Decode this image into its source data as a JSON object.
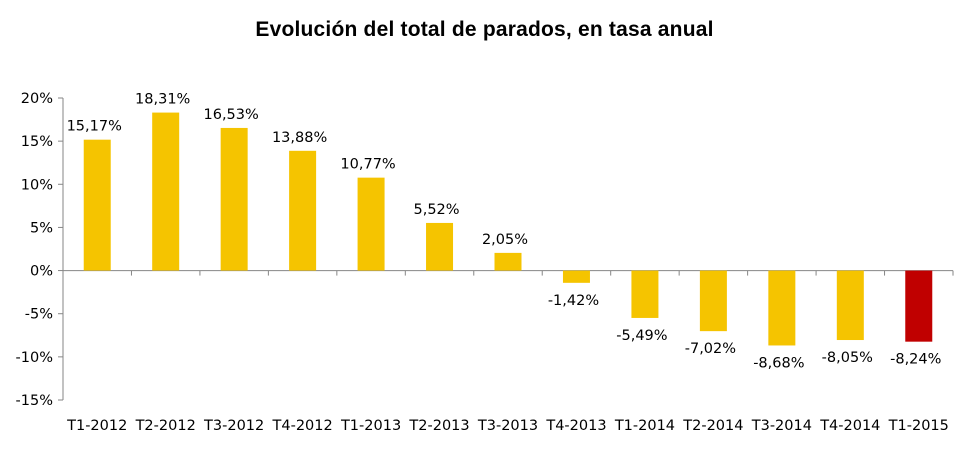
{
  "chart_data": {
    "type": "bar",
    "title": "Evolución del total de parados, en tasa anual",
    "xlabel": "",
    "ylabel": "",
    "ylim": [
      -15,
      20
    ],
    "yticks": [
      20,
      15,
      10,
      5,
      0,
      -5,
      -10,
      -15
    ],
    "ytick_labels": [
      "20%",
      "15%",
      "10%",
      "5%",
      "0%",
      "-5%",
      "-10%",
      "-15%"
    ],
    "categories": [
      "T1-2012",
      "T2-2012",
      "T3-2012",
      "T4-2012",
      "T1-2013",
      "T2-2013",
      "T3-2013",
      "T4-2013",
      "T1-2014",
      "T2-2014",
      "T3-2014",
      "T4-2014",
      "T1-2015"
    ],
    "values": [
      15.17,
      18.31,
      16.53,
      13.88,
      10.77,
      5.52,
      2.05,
      -1.42,
      -5.49,
      -7.02,
      -8.68,
      -8.05,
      -8.24
    ],
    "data_labels": [
      "15,17%",
      "18,31%",
      "16,53%",
      "13,88%",
      "10,77%",
      "5,52%",
      "2,05%",
      "-1,42%",
      "-5,49%",
      "-7,02%",
      "-8,68%",
      "-8,05%",
      "-8,24%"
    ],
    "colors": {
      "default": "#F5C400",
      "highlight": "#C00000"
    },
    "highlight_index": 12,
    "grid": false,
    "legend": "none"
  }
}
